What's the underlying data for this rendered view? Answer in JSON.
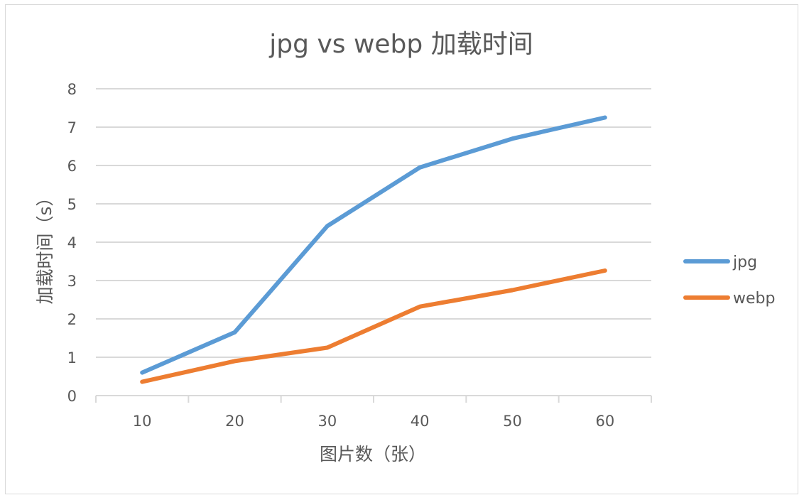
{
  "chart_data": {
    "type": "line",
    "title": "jpg vs webp 加载时间",
    "xlabel": "图片数（张）",
    "ylabel": "加载时间（s）",
    "categories": [
      "10",
      "20",
      "30",
      "40",
      "50",
      "60"
    ],
    "ylim": [
      0,
      8
    ],
    "yticks": [
      "0",
      "1",
      "2",
      "3",
      "4",
      "5",
      "6",
      "7",
      "8"
    ],
    "grid": true,
    "legend_position": "right",
    "series": [
      {
        "name": "jpg",
        "color": "#5b9bd5",
        "values": [
          0.6,
          1.65,
          4.42,
          5.95,
          6.7,
          7.25
        ]
      },
      {
        "name": "webp",
        "color": "#ed7d31",
        "values": [
          0.36,
          0.9,
          1.25,
          2.32,
          2.75,
          3.26
        ]
      }
    ]
  }
}
